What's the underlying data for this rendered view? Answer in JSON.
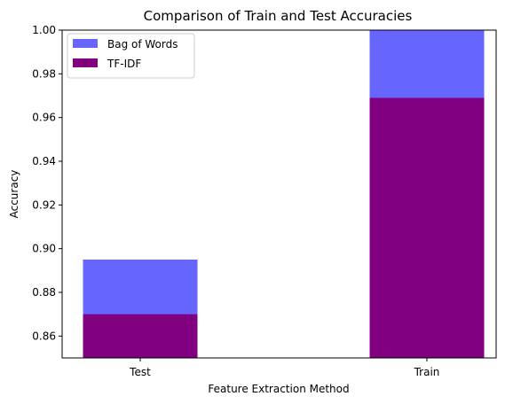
{
  "chart_data": {
    "type": "bar",
    "title": "Comparison of Train and Test Accuracies",
    "xlabel": "Feature Extraction Method",
    "ylabel": "Accuracy",
    "categories": [
      "Test",
      "Train"
    ],
    "ylim": [
      0.85,
      1.0
    ],
    "yticks": [
      "0.86",
      "0.88",
      "0.90",
      "0.92",
      "0.94",
      "0.96",
      "0.98",
      "1.00"
    ],
    "legend_position": "top-left",
    "overlaid": true,
    "series": [
      {
        "name": "Bag of Words",
        "values": [
          0.895,
          1.0
        ],
        "color": "#6666ff"
      },
      {
        "name": "TF-IDF",
        "values": [
          0.87,
          0.969
        ],
        "color": "#800080"
      }
    ]
  }
}
